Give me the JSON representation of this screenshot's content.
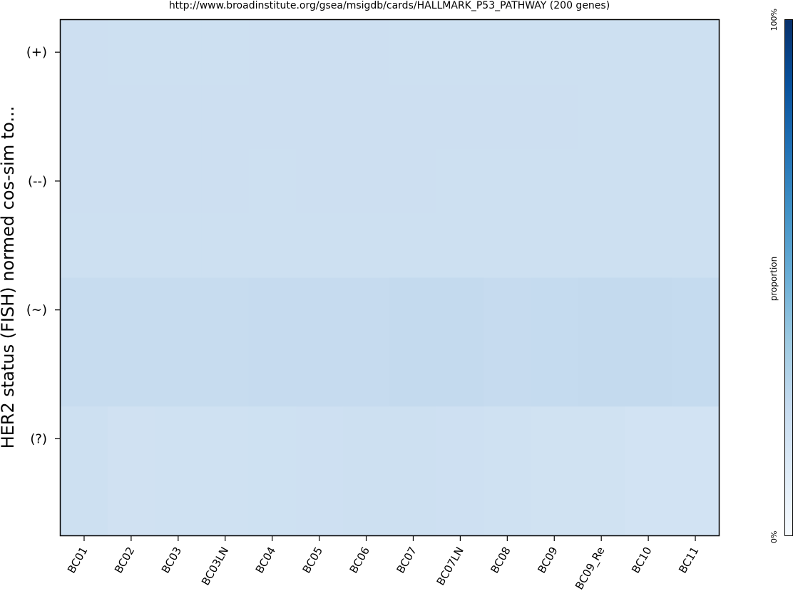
{
  "chart_data": {
    "type": "heatmap",
    "title": "http://www.broadinstitute.org/gsea/msigdb/cards/HALLMARK_P53_PATHWAY (200 genes)",
    "ylabel": "HER2 status (FISH) normed cos-sim to...",
    "xlabel": "",
    "categories": [
      "BC01",
      "BC02",
      "BC03",
      "BC03LN",
      "BC04",
      "BC05",
      "BC06",
      "BC07",
      "BC07LN",
      "BC08",
      "BC09",
      "BC09_Re",
      "BC10",
      "BC11"
    ],
    "rows": [
      "(+)",
      "",
      "(--)",
      "",
      "(~)",
      "",
      "(?)",
      ""
    ],
    "values": [
      [
        0.215,
        0.213,
        0.213,
        0.214,
        0.215,
        0.215,
        0.215,
        0.214,
        0.214,
        0.214,
        0.214,
        0.213,
        0.212,
        0.214
      ],
      [
        0.216,
        0.215,
        0.215,
        0.215,
        0.215,
        0.215,
        0.215,
        0.215,
        0.215,
        0.215,
        0.215,
        0.214,
        0.212,
        0.214
      ],
      [
        0.216,
        0.215,
        0.215,
        0.215,
        0.214,
        0.215,
        0.215,
        0.215,
        0.214,
        0.214,
        0.214,
        0.214,
        0.212,
        0.214
      ],
      [
        0.214,
        0.213,
        0.213,
        0.213,
        0.213,
        0.213,
        0.213,
        0.213,
        0.213,
        0.213,
        0.213,
        0.213,
        0.211,
        0.213
      ],
      [
        0.243,
        0.245,
        0.245,
        0.245,
        0.25,
        0.25,
        0.249,
        0.255,
        0.255,
        0.25,
        0.252,
        0.255,
        0.255,
        0.253
      ],
      [
        0.243,
        0.245,
        0.245,
        0.245,
        0.25,
        0.25,
        0.249,
        0.255,
        0.255,
        0.25,
        0.252,
        0.255,
        0.255,
        0.253
      ],
      [
        0.213,
        0.2,
        0.201,
        0.204,
        0.206,
        0.208,
        0.212,
        0.211,
        0.21,
        0.203,
        0.197,
        0.198,
        0.186,
        0.189
      ],
      [
        0.213,
        0.2,
        0.201,
        0.204,
        0.206,
        0.208,
        0.212,
        0.211,
        0.21,
        0.203,
        0.197,
        0.198,
        0.186,
        0.189
      ]
    ],
    "colorbar": {
      "label": "proportion",
      "min_label": "0%",
      "max_label": "100%",
      "range": [
        0,
        1
      ],
      "colormap": "Blues"
    },
    "grid": false,
    "legend": "colorbar-right"
  }
}
